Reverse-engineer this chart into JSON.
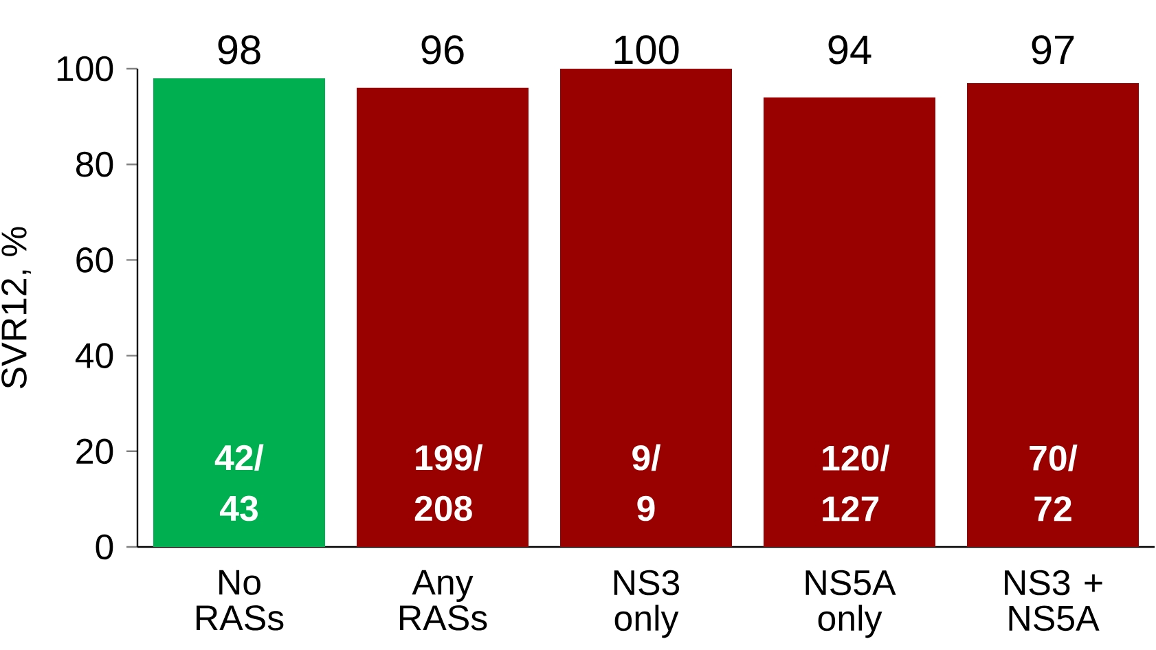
{
  "chart_data": {
    "type": "bar",
    "categories": [
      "No RASs",
      "Any RASs",
      "NS3 only",
      "NS5A only",
      "NS3 + NS5A"
    ],
    "values": [
      98,
      96,
      100,
      94,
      97
    ],
    "colors": [
      "#00b050",
      "#990000",
      "#990000",
      "#990000",
      "#990000"
    ],
    "ylabel": "SVR12, %",
    "ylim": [
      0,
      100
    ],
    "yticks": [
      0,
      20,
      40,
      60,
      80,
      100
    ],
    "data_labels": true,
    "grid": false,
    "annotations": [
      "42/ 43",
      "199/ 208",
      "9/ 9",
      "120/ 127",
      "70/ 72"
    ]
  }
}
